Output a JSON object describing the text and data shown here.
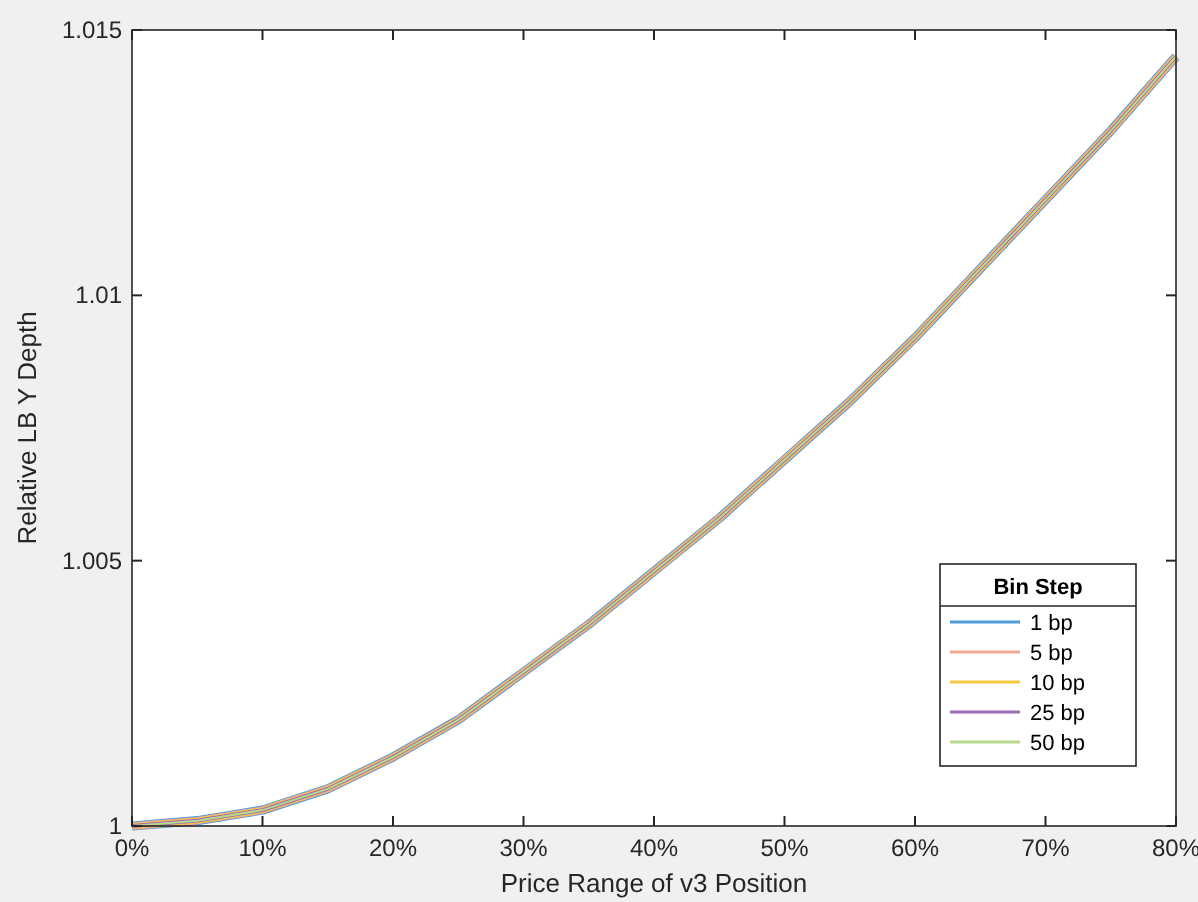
{
  "chart_data": {
    "type": "line",
    "xlabel": "Price Range of v3 Position",
    "ylabel": "Relative LB Y Depth",
    "legend_title": "Bin Step",
    "legend": "bottom right",
    "grid": false,
    "x": [
      0,
      5,
      10,
      15,
      20,
      25,
      30,
      35,
      40,
      45,
      50,
      55,
      60,
      65,
      70,
      75,
      80
    ],
    "xlim": [
      0,
      80
    ],
    "xticks": [
      {
        "value": 0,
        "label": "0%"
      },
      {
        "value": 10,
        "label": "10%"
      },
      {
        "value": 20,
        "label": "20%"
      },
      {
        "value": 30,
        "label": "30%"
      },
      {
        "value": 40,
        "label": "40%"
      },
      {
        "value": 50,
        "label": "50%"
      },
      {
        "value": 60,
        "label": "60%"
      },
      {
        "value": 70,
        "label": "70%"
      },
      {
        "value": 80,
        "label": "80%"
      }
    ],
    "ylim": [
      1,
      1.015
    ],
    "yticks": [
      1,
      1.005,
      1.01,
      1.015
    ],
    "series": [
      {
        "name": "1 bp",
        "color": "#4d9bd6",
        "values": [
          1,
          1.0001,
          1.0003,
          1.0007,
          1.0013,
          1.002,
          1.0029,
          1.0038,
          1.0048,
          1.0058,
          1.0069,
          1.008,
          1.0092,
          1.0105,
          1.0118,
          1.0131,
          1.0145
        ]
      },
      {
        "name": "5 bp",
        "color": "#f0a890",
        "values": [
          1,
          1.0001,
          1.0003,
          1.0007,
          1.0013,
          1.002,
          1.0029,
          1.0038,
          1.0048,
          1.0058,
          1.0069,
          1.008,
          1.0092,
          1.0105,
          1.0118,
          1.0131,
          1.0145
        ]
      },
      {
        "name": "10 bp",
        "color": "#f5c842",
        "values": [
          1,
          1.0001,
          1.0003,
          1.0007,
          1.0013,
          1.002,
          1.0029,
          1.0038,
          1.0048,
          1.0058,
          1.0069,
          1.008,
          1.0092,
          1.0105,
          1.0118,
          1.0131,
          1.0145
        ]
      },
      {
        "name": "25 bp",
        "color": "#9b6bb5",
        "values": [
          1,
          1.0001,
          1.0003,
          1.0007,
          1.0013,
          1.002,
          1.0029,
          1.0038,
          1.0048,
          1.0058,
          1.0069,
          1.008,
          1.0092,
          1.0105,
          1.0118,
          1.0131,
          1.0145
        ]
      },
      {
        "name": "50 bp",
        "color": "#b8d98f",
        "values": [
          1,
          1.0001,
          1.0003,
          1.0007,
          1.0013,
          1.002,
          1.0029,
          1.0038,
          1.0048,
          1.0058,
          1.0069,
          1.008,
          1.0092,
          1.0105,
          1.0118,
          1.0131,
          1.0145
        ]
      }
    ]
  }
}
